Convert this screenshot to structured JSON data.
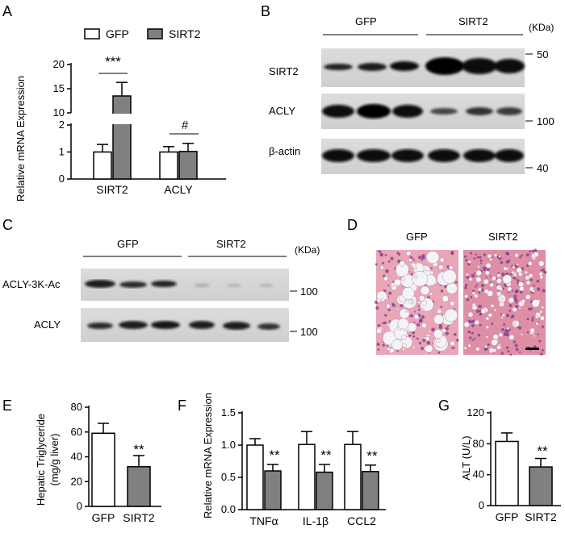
{
  "panels": {
    "A": {
      "letter": "A"
    },
    "B": {
      "letter": "B"
    },
    "C": {
      "letter": "C"
    },
    "D": {
      "letter": "D"
    },
    "E": {
      "letter": "E"
    },
    "F": {
      "letter": "F"
    },
    "G": {
      "letter": "G"
    }
  },
  "legend": {
    "gfp": "GFP",
    "sirt2": "SIRT2"
  },
  "colors": {
    "gfp_fill": "#ffffff",
    "sirt2_fill": "#808080",
    "stroke": "#000000"
  },
  "blot_B": {
    "group_labels": [
      "GFP",
      "SIRT2"
    ],
    "unit": "(KDa)",
    "rows": [
      {
        "label": "SIRT2",
        "marker": "50"
      },
      {
        "label": "ACLY",
        "marker": "100"
      },
      {
        "label": "β-actin",
        "marker": "40"
      }
    ]
  },
  "blot_C": {
    "group_labels": [
      "GFP",
      "SIRT2"
    ],
    "unit": "(KDa)",
    "rows": [
      {
        "label": "ACLY-3K-Ac",
        "marker": "100"
      },
      {
        "label": "ACLY",
        "marker": "100"
      }
    ]
  },
  "histology_D": {
    "labels": [
      "GFP",
      "SIRT2"
    ]
  },
  "chart_data": [
    {
      "panel": "A",
      "type": "bar",
      "categories": [
        "SIRT2",
        "ACLY"
      ],
      "ylabel": "Relative mRNA  Expression",
      "yticks_lower": [
        "0",
        "1",
        "2"
      ],
      "yticks_upper": [
        "10",
        "15",
        "20"
      ],
      "axis_break": [
        2,
        10
      ],
      "series": [
        {
          "name": "GFP",
          "values": [
            1.0,
            1.0
          ],
          "errors": [
            0.28,
            0.2
          ]
        },
        {
          "name": "SIRT2",
          "values": [
            13.5,
            1.02
          ],
          "errors": [
            2.8,
            0.3
          ]
        }
      ],
      "annotations": [
        "***",
        "#"
      ]
    },
    {
      "panel": "E",
      "type": "bar",
      "categories": [
        "GFP",
        "SIRT2"
      ],
      "ylabel_lines": [
        "Hepatic Triglyceride",
        "(mg/g liver)"
      ],
      "yticks": [
        "0",
        "20",
        "40",
        "60",
        "80"
      ],
      "ylim": [
        0,
        80
      ],
      "values": [
        59,
        32
      ],
      "errors": [
        8,
        9
      ],
      "annotations": [
        "**"
      ]
    },
    {
      "panel": "F",
      "type": "bar",
      "categories": [
        "TNFα",
        "IL-1β",
        "CCL2"
      ],
      "ylabel": "Relative mRNA Expression",
      "yticks": [
        "0.0",
        "0.5",
        "1.0",
        "1.5"
      ],
      "ylim": [
        0,
        1.5
      ],
      "series": [
        {
          "name": "GFP",
          "values": [
            1.0,
            1.01,
            1.01
          ],
          "errors": [
            0.1,
            0.2,
            0.2
          ]
        },
        {
          "name": "SIRT2",
          "values": [
            0.6,
            0.58,
            0.59
          ],
          "errors": [
            0.1,
            0.12,
            0.1
          ]
        }
      ],
      "annotations": [
        "**",
        "**",
        "**"
      ]
    },
    {
      "panel": "G",
      "type": "bar",
      "categories": [
        "GFP",
        "SIRT2"
      ],
      "ylabel": "ALT (U/L)",
      "yticks": [
        "0",
        "40",
        "80",
        "120"
      ],
      "ylim": [
        0,
        120
      ],
      "values": [
        83,
        50
      ],
      "errors": [
        11,
        11
      ],
      "annotations": [
        "**"
      ]
    }
  ]
}
